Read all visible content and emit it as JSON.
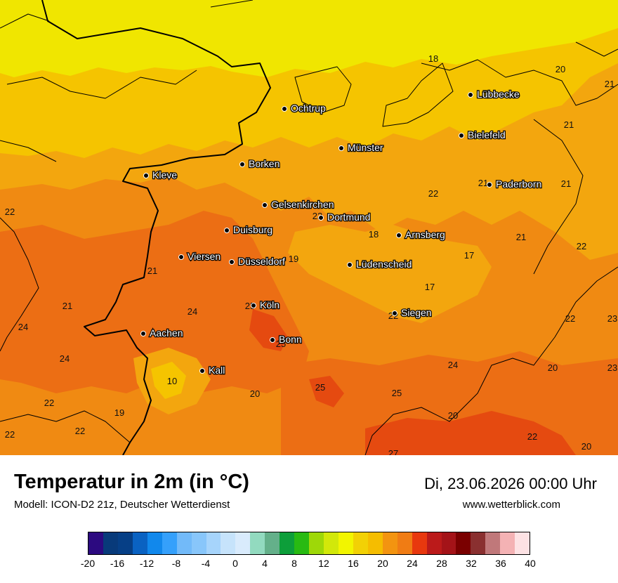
{
  "title": "Temperatur in 2m (in °C)",
  "subtitle": "Modell: ICON-D2 21z, Deutscher Wetterdienst",
  "datetime": "Di, 23.06.2026 00:00 Uhr",
  "website": "www.wetterblick.com",
  "colors": {
    "field_16": "#f0e600",
    "field_18": "#f5c400",
    "field_20": "#f3a60e",
    "field_22": "#f08a12",
    "field_24": "#ec6e14",
    "field_26": "#e54a10",
    "border": "#000000",
    "city_dot": "#000000"
  },
  "cities": [
    {
      "name": "Ochtrup"
    },
    {
      "name": "Lübbecke"
    },
    {
      "name": "Bielefeld"
    },
    {
      "name": "Münster"
    },
    {
      "name": "Borken"
    },
    {
      "name": "Kleve"
    },
    {
      "name": "Paderborn"
    },
    {
      "name": "Gelsenkirchen"
    },
    {
      "name": "Dortmund"
    },
    {
      "name": "Duisburg"
    },
    {
      "name": "Arnsberg"
    },
    {
      "name": "Viersen"
    },
    {
      "name": "Düsseldorf"
    },
    {
      "name": "Lüdenscheid"
    },
    {
      "name": "Köln"
    },
    {
      "name": "Siegen"
    },
    {
      "name": "Aachen"
    },
    {
      "name": "Bonn"
    },
    {
      "name": "Kall"
    }
  ],
  "values": [
    "18",
    "20",
    "21",
    "21",
    "21",
    "22",
    "21",
    "22",
    "22",
    "18",
    "21",
    "22",
    "17",
    "19",
    "21",
    "21",
    "24",
    "24",
    "17",
    "22",
    "22",
    "23",
    "25",
    "24",
    "25",
    "23",
    "24",
    "10",
    "20",
    "20",
    "22",
    "19",
    "25",
    "25",
    "22",
    "20",
    "22",
    "22",
    "20",
    "27"
  ],
  "legend": {
    "colors": [
      "#2c0a80",
      "#083a7a",
      "#063f86",
      "#0a62c2",
      "#1188ec",
      "#35a0fb",
      "#72baf9",
      "#88c6fa",
      "#a6d4fb",
      "#c6e3fb",
      "#d9ebfc",
      "#92dabf",
      "#64b08a",
      "#0d9e3a",
      "#28ba12",
      "#9ed808",
      "#d2e80a",
      "#f2f500",
      "#f2d105",
      "#f5bd00",
      "#f39410",
      "#f07c14",
      "#e8380e",
      "#bb1a1a",
      "#a41318",
      "#7a0000",
      "#8a3030",
      "#c0787a",
      "#f4b2b4",
      "#fde2e4"
    ],
    "ticks": [
      "-20",
      "-16",
      "-12",
      "-8",
      "-4",
      "0",
      "4",
      "8",
      "12",
      "16",
      "20",
      "24",
      "28",
      "32",
      "36",
      "40"
    ]
  }
}
